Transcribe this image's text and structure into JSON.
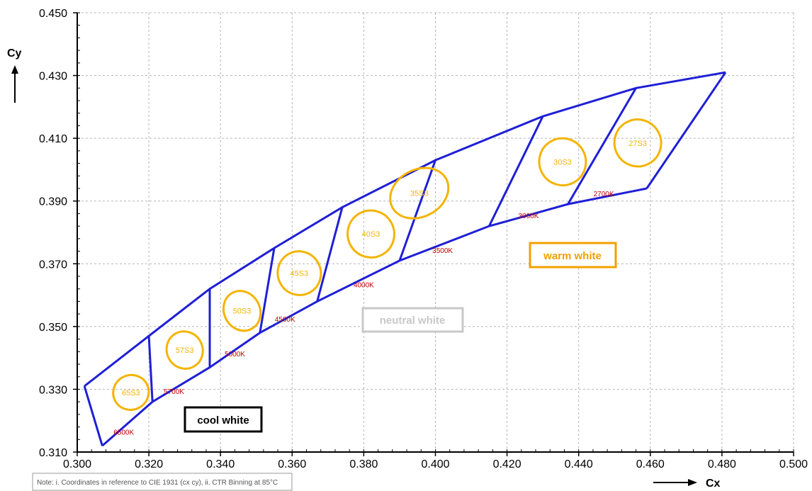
{
  "chart_data": {
    "type": "scatter",
    "xlabel": "Cx",
    "ylabel": "Cy",
    "xlim": [
      0.3,
      0.5
    ],
    "ylim": [
      0.31,
      0.45
    ],
    "x_ticks": [
      "0.300",
      "0.320",
      "0.340",
      "0.360",
      "0.380",
      "0.400",
      "0.420",
      "0.440",
      "0.460",
      "0.480",
      "0.500"
    ],
    "y_ticks": [
      "0.310",
      "0.330",
      "0.350",
      "0.370",
      "0.390",
      "0.410",
      "0.430",
      "0.450"
    ],
    "grid": true,
    "colors": {
      "boundary": "#1f1fd6",
      "ellipse": "#f4b400",
      "cct_label": "#c00000",
      "grid": "#b5b5b5"
    },
    "boundary": {
      "upper": [
        [
          0.302,
          0.331
        ],
        [
          0.32,
          0.347
        ],
        [
          0.337,
          0.362
        ],
        [
          0.355,
          0.375
        ],
        [
          0.374,
          0.388
        ],
        [
          0.4,
          0.403
        ],
        [
          0.43,
          0.417
        ],
        [
          0.456,
          0.426
        ],
        [
          0.481,
          0.431
        ]
      ],
      "lower": [
        [
          0.307,
          0.312
        ],
        [
          0.321,
          0.326
        ],
        [
          0.337,
          0.337
        ],
        [
          0.351,
          0.348
        ],
        [
          0.367,
          0.358
        ],
        [
          0.39,
          0.371
        ],
        [
          0.415,
          0.382
        ],
        [
          0.437,
          0.389
        ],
        [
          0.459,
          0.394
        ]
      ]
    },
    "bins": [
      {
        "name": "65S3",
        "cx": 0.315,
        "cy": 0.329,
        "rx": 0.005,
        "ry": 0.0055
      },
      {
        "name": "57S3",
        "cx": 0.33,
        "cy": 0.3425,
        "rx": 0.005,
        "ry": 0.006
      },
      {
        "name": "50S3",
        "cx": 0.346,
        "cy": 0.355,
        "rx": 0.005,
        "ry": 0.0065
      },
      {
        "name": "45S3",
        "cx": 0.362,
        "cy": 0.367,
        "rx": 0.006,
        "ry": 0.007
      },
      {
        "name": "40S3",
        "cx": 0.382,
        "cy": 0.3795,
        "rx": 0.0065,
        "ry": 0.0075
      },
      {
        "name": "35S3",
        "cx": 0.3955,
        "cy": 0.3925,
        "rx": 0.0085,
        "ry": 0.0075
      },
      {
        "name": "30S3",
        "cx": 0.4355,
        "cy": 0.4025,
        "rx": 0.0065,
        "ry": 0.0075
      },
      {
        "name": "27S3",
        "cx": 0.4565,
        "cy": 0.4085,
        "rx": 0.0065,
        "ry": 0.0075
      }
    ],
    "cct_labels": [
      {
        "text": "6500K",
        "x": 0.313,
        "y": 0.3155
      },
      {
        "text": "5700K",
        "x": 0.327,
        "y": 0.3285
      },
      {
        "text": "5000K",
        "x": 0.344,
        "y": 0.3405
      },
      {
        "text": "4500K",
        "x": 0.358,
        "y": 0.3515
      },
      {
        "text": "4000K",
        "x": 0.38,
        "y": 0.3625
      },
      {
        "text": "3500K",
        "x": 0.402,
        "y": 0.3735
      },
      {
        "text": "3000K",
        "x": 0.426,
        "y": 0.3845
      },
      {
        "text": "2700K",
        "x": 0.447,
        "y": 0.3915
      }
    ],
    "groups": [
      {
        "text": "cool white",
        "color": "#000000"
      },
      {
        "text": "neutral white",
        "color": "#c8c8c8"
      },
      {
        "text": "warm white",
        "color": "#f4a000"
      }
    ]
  },
  "note": "Note: i. Coordinates  in reference to CIE 1931 (cx cy), ii. CTR Binning at 85°C"
}
